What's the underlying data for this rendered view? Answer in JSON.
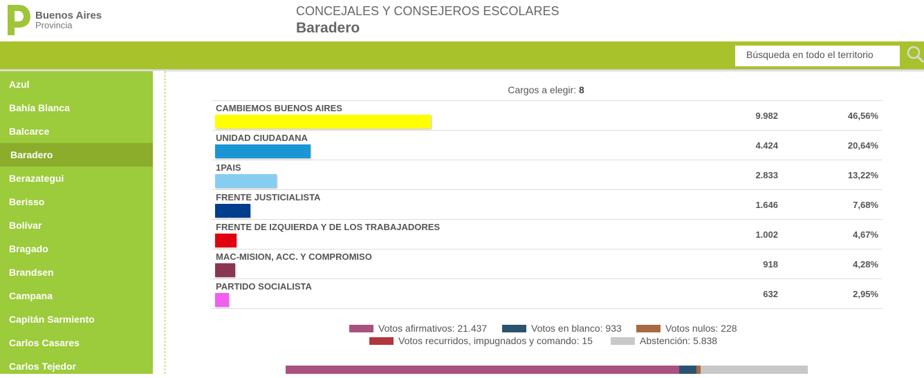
{
  "header": {
    "logo_line1": "Buenos Aires",
    "logo_line2": "Provincia",
    "subtitle": "CONCEJALES Y CONSEJEROS ESCOLARES",
    "title": "Baradero",
    "brand_color": "#a8c22c"
  },
  "search": {
    "placeholder": "Búsqueda en todo el territorio"
  },
  "sidebar": {
    "items": [
      {
        "label": "Azul"
      },
      {
        "label": "Bahía Blanca"
      },
      {
        "label": "Balcarce"
      },
      {
        "label": "Baradero",
        "active": true
      },
      {
        "label": "Berazategui"
      },
      {
        "label": "Berisso"
      },
      {
        "label": "Bolívar"
      },
      {
        "label": "Bragado"
      },
      {
        "label": "Brandsen"
      },
      {
        "label": "Campana"
      },
      {
        "label": "Capitán Sarmiento"
      },
      {
        "label": "Carlos Casares"
      },
      {
        "label": "Carlos Tejedor"
      }
    ]
  },
  "cargos": {
    "label": "Cargos a elegir: ",
    "value": "8"
  },
  "results": [
    {
      "party": "CAMBIEMOS BUENOS AIRES",
      "votes": "9.982",
      "percent": "46,56%",
      "share": 46.56,
      "color": "#ffff00"
    },
    {
      "party": "UNIDAD CIUDADANA",
      "votes": "4.424",
      "percent": "20,64%",
      "share": 20.64,
      "color": "#1a96d4"
    },
    {
      "party": "1PAIS",
      "votes": "2.833",
      "percent": "13,22%",
      "share": 13.22,
      "color": "#87cdf2"
    },
    {
      "party": "FRENTE JUSTICIALISTA",
      "votes": "1.646",
      "percent": "7,68%",
      "share": 7.68,
      "color": "#003d8c"
    },
    {
      "party": "FRENTE DE IZQUIERDA Y DE LOS TRABAJADORES",
      "votes": "1.002",
      "percent": "4,67%",
      "share": 4.67,
      "color": "#e0000f"
    },
    {
      "party": "MAC-MISION, ACC. Y COMPROMISO",
      "votes": "918",
      "percent": "4,28%",
      "share": 4.28,
      "color": "#8a3652"
    },
    {
      "party": "PARTIDO SOCIALISTA",
      "votes": "632",
      "percent": "2,95%",
      "share": 2.95,
      "color": "#f25ff0"
    }
  ],
  "legend": [
    {
      "label": "Votos afirmativos: 21.437",
      "color": "#a9527f",
      "value": 21437
    },
    {
      "label": "Votos en blanco: 933",
      "color": "#2b5370",
      "value": 933
    },
    {
      "label": "Votos nulos: 228",
      "color": "#a86a42",
      "value": 228
    },
    {
      "label": "Votos recurridos, impugnados y comando: 15",
      "color": "#b3363e",
      "value": 15
    },
    {
      "label": "Abstención: 5.838",
      "color": "#c8c8c8",
      "value": 5838
    }
  ]
}
